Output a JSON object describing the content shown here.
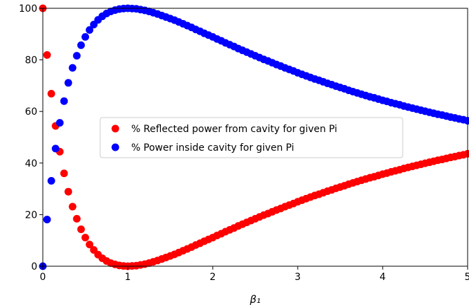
{
  "chart_data": {
    "type": "scatter",
    "xlabel": "β₁",
    "ylabel": "",
    "xlim": [
      0,
      5
    ],
    "ylim": [
      0,
      100
    ],
    "xticks": [
      0,
      1,
      2,
      3,
      4,
      5
    ],
    "yticks": [
      0,
      20,
      40,
      60,
      80,
      100
    ],
    "grid": false,
    "legend_position": "center-left",
    "marker": "filled-circle",
    "series": [
      {
        "name": "% Reflected power from cavity for given Pi",
        "color": "#ff0000",
        "x": [
          0,
          0.05,
          0.1,
          0.15,
          0.2,
          0.25,
          0.3,
          0.35,
          0.4,
          0.45,
          0.5,
          0.55,
          0.6,
          0.65,
          0.7,
          0.75,
          0.8,
          0.85,
          0.9,
          0.95,
          1,
          1.05,
          1.1,
          1.15,
          1.2,
          1.25,
          1.3,
          1.35,
          1.4,
          1.45,
          1.5,
          1.55,
          1.6,
          1.65,
          1.7,
          1.75,
          1.8,
          1.85,
          1.9,
          1.95,
          2,
          2.05,
          2.1,
          2.15,
          2.2,
          2.25,
          2.3,
          2.35,
          2.4,
          2.45,
          2.5,
          2.55,
          2.6,
          2.65,
          2.7,
          2.75,
          2.8,
          2.85,
          2.9,
          2.95,
          3,
          3.05,
          3.1,
          3.15,
          3.2,
          3.25,
          3.3,
          3.35,
          3.4,
          3.45,
          3.5,
          3.55,
          3.6,
          3.65,
          3.7,
          3.75,
          3.8,
          3.85,
          3.9,
          3.95,
          4,
          4.05,
          4.1,
          4.15,
          4.2,
          4.25,
          4.3,
          4.35,
          4.4,
          4.45,
          4.5,
          4.55,
          4.6,
          4.65,
          4.7,
          4.75,
          4.8,
          4.85,
          4.9,
          4.95,
          5
        ],
        "y": [
          100,
          81.9,
          66.9,
          54.4,
          44.4,
          36.0,
          28.9,
          23.1,
          18.4,
          14.3,
          11.1,
          8.4,
          6.3,
          4.5,
          3.1,
          2.0,
          1.2,
          0.7,
          0.3,
          0.1,
          0,
          0.1,
          0.2,
          0.5,
          0.8,
          1.2,
          1.7,
          2.2,
          2.8,
          3.4,
          4.0,
          4.6,
          5.3,
          6.0,
          6.7,
          7.4,
          8.2,
          8.9,
          9.7,
          10.4,
          11.1,
          11.9,
          12.6,
          13.4,
          14.1,
          14.8,
          15.6,
          16.3,
          17.0,
          17.7,
          18.4,
          19.1,
          19.8,
          20.4,
          21.1,
          21.8,
          22.4,
          23.1,
          23.7,
          24.3,
          25.0,
          25.6,
          26.2,
          26.8,
          27.4,
          27.9,
          28.5,
          29.1,
          29.6,
          30.2,
          30.7,
          31.2,
          31.8,
          32.3,
          32.8,
          33.3,
          33.8,
          34.3,
          34.7,
          35.2,
          35.7,
          36.1,
          36.6,
          37.0,
          37.4,
          37.9,
          38.3,
          38.7,
          39.1,
          39.5,
          39.9,
          40.3,
          40.7,
          41.1,
          41.4,
          41.8,
          42.2,
          42.5,
          42.9,
          43.2,
          43.6
        ]
      },
      {
        "name": "% Power inside cavity for given Pi",
        "color": "#0000ff",
        "x": [
          0,
          0.05,
          0.1,
          0.15,
          0.2,
          0.25,
          0.3,
          0.35,
          0.4,
          0.45,
          0.5,
          0.55,
          0.6,
          0.65,
          0.7,
          0.75,
          0.8,
          0.85,
          0.9,
          0.95,
          1,
          1.05,
          1.1,
          1.15,
          1.2,
          1.25,
          1.3,
          1.35,
          1.4,
          1.45,
          1.5,
          1.55,
          1.6,
          1.65,
          1.7,
          1.75,
          1.8,
          1.85,
          1.9,
          1.95,
          2,
          2.05,
          2.1,
          2.15,
          2.2,
          2.25,
          2.3,
          2.35,
          2.4,
          2.45,
          2.5,
          2.55,
          2.6,
          2.65,
          2.7,
          2.75,
          2.8,
          2.85,
          2.9,
          2.95,
          3,
          3.05,
          3.1,
          3.15,
          3.2,
          3.25,
          3.3,
          3.35,
          3.4,
          3.45,
          3.5,
          3.55,
          3.6,
          3.65,
          3.7,
          3.75,
          3.8,
          3.85,
          3.9,
          3.95,
          4,
          4.05,
          4.1,
          4.15,
          4.2,
          4.25,
          4.3,
          4.35,
          4.4,
          4.45,
          4.5,
          4.55,
          4.6,
          4.65,
          4.7,
          4.75,
          4.8,
          4.85,
          4.9,
          4.95,
          5
        ],
        "y": [
          0,
          18.1,
          33.1,
          45.6,
          55.6,
          64.0,
          71.1,
          76.9,
          81.6,
          85.7,
          88.9,
          91.6,
          93.7,
          95.5,
          96.9,
          98.0,
          98.8,
          99.3,
          99.7,
          99.9,
          100,
          99.9,
          99.8,
          99.5,
          99.2,
          98.8,
          98.3,
          97.8,
          97.2,
          96.6,
          96.0,
          95.4,
          94.7,
          94.0,
          93.3,
          92.6,
          91.8,
          91.1,
          90.3,
          89.6,
          88.9,
          88.1,
          87.4,
          86.6,
          85.9,
          85.2,
          84.4,
          83.7,
          83.0,
          82.3,
          81.6,
          80.9,
          80.2,
          79.6,
          78.9,
          78.2,
          77.6,
          76.9,
          76.3,
          75.7,
          75.0,
          74.4,
          73.8,
          73.2,
          72.6,
          72.1,
          71.5,
          70.9,
          70.4,
          69.8,
          69.3,
          68.8,
          68.2,
          67.7,
          67.2,
          66.7,
          66.2,
          65.7,
          65.3,
          64.8,
          64.3,
          63.9,
          63.4,
          63.0,
          62.6,
          62.1,
          61.7,
          61.3,
          60.9,
          60.5,
          60.1,
          59.7,
          59.3,
          58.9,
          58.6,
          58.2,
          57.8,
          57.5,
          57.1,
          56.8,
          56.4
        ]
      }
    ]
  }
}
